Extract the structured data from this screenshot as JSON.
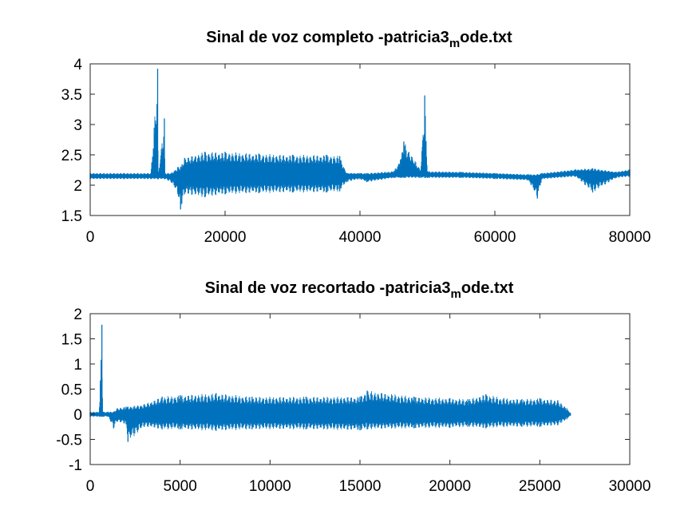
{
  "chart_data": [
    {
      "type": "line",
      "title": "Sinal de voz completo -patricia3",
      "title_subscript": "m",
      "title_suffix": "ode.txt",
      "xlabel": "",
      "ylabel": "",
      "xlim": [
        0,
        80000
      ],
      "ylim": [
        1.5,
        4
      ],
      "xticks": [
        "0",
        "20000",
        "40000",
        "60000",
        "80000"
      ],
      "yticks": [
        "1.5",
        "2",
        "2.5",
        "3",
        "3.5",
        "4"
      ],
      "grid": false,
      "color": "#0072BD",
      "series": [
        {
          "x": [
            0,
            5000,
            9000,
            10000,
            10100,
            11000,
            11100,
            12000,
            13000,
            13400,
            14000,
            17000,
            20000,
            25000,
            30000,
            35000,
            37000,
            38000,
            40000,
            41000,
            45000,
            46000,
            46500,
            49000,
            49600,
            50000,
            55000,
            60000,
            65000,
            66300,
            67000,
            72000,
            74500,
            78000,
            80000
          ],
          "center": [
            2.15,
            2.15,
            2.15,
            2.15,
            2.15,
            2.15,
            2.15,
            2.15,
            2.15,
            2.15,
            2.18,
            2.18,
            2.17,
            2.17,
            2.17,
            2.17,
            2.17,
            2.17,
            2.16,
            2.14,
            2.17,
            2.17,
            2.18,
            2.18,
            2.18,
            2.17,
            2.17,
            2.16,
            2.13,
            2.13,
            2.15,
            2.2,
            2.18,
            2.18,
            2.2
          ],
          "upper": [
            2.2,
            2.2,
            2.2,
            3.92,
            2.2,
            3.1,
            2.2,
            2.2,
            2.3,
            2.3,
            2.45,
            2.55,
            2.55,
            2.52,
            2.5,
            2.5,
            2.48,
            2.2,
            2.2,
            2.2,
            2.23,
            2.42,
            2.72,
            2.25,
            3.48,
            2.23,
            2.22,
            2.2,
            2.18,
            2.18,
            2.2,
            2.26,
            2.28,
            2.22,
            2.26
          ],
          "lower": [
            2.1,
            2.1,
            2.1,
            2.1,
            2.1,
            2.1,
            2.1,
            2.05,
            1.85,
            1.6,
            1.85,
            1.8,
            1.85,
            1.87,
            1.88,
            1.88,
            1.9,
            2.05,
            2.1,
            2.05,
            2.12,
            2.12,
            2.12,
            2.12,
            2.12,
            2.12,
            2.12,
            2.1,
            2.08,
            1.78,
            2.1,
            2.14,
            1.88,
            2.12,
            2.14
          ]
        }
      ]
    },
    {
      "type": "line",
      "title": "Sinal de voz recortado -patricia3",
      "title_subscript": "m",
      "title_suffix": "ode.txt",
      "xlabel": "",
      "ylabel": "",
      "xlim": [
        0,
        30000
      ],
      "ylim": [
        -1,
        2
      ],
      "xticks": [
        "0",
        "5000",
        "10000",
        "15000",
        "20000",
        "25000",
        "30000"
      ],
      "yticks": [
        "-1",
        "-0.5",
        "0",
        "0.5",
        "1",
        "1.5",
        "2"
      ],
      "grid": false,
      "color": "#0072BD",
      "series": [
        {
          "x": [
            0,
            500,
            650,
            700,
            1000,
            1300,
            1500,
            2000,
            2100,
            3000,
            4000,
            5000,
            7000,
            9000,
            12000,
            15000,
            15400,
            18000,
            20000,
            21000,
            22000,
            23000,
            24000,
            25000,
            26000,
            26500,
            26700
          ],
          "center": [
            0.0,
            0.0,
            0.0,
            0.0,
            0.0,
            0.0,
            0.0,
            0.0,
            0.0,
            0.0,
            0.0,
            0.0,
            0.0,
            0.0,
            0.0,
            0.0,
            0.0,
            0.0,
            0.0,
            0.0,
            0.0,
            0.0,
            0.0,
            0.0,
            0.0,
            0.0,
            0.0
          ],
          "upper": [
            0.05,
            0.05,
            1.78,
            0.05,
            0.05,
            0.05,
            0.12,
            0.15,
            0.15,
            0.2,
            0.35,
            0.38,
            0.42,
            0.35,
            0.35,
            0.35,
            0.47,
            0.35,
            0.32,
            0.3,
            0.4,
            0.32,
            0.3,
            0.32,
            0.28,
            0.12,
            0.03
          ],
          "lower": [
            -0.05,
            -0.05,
            -0.05,
            -0.05,
            -0.05,
            -0.28,
            -0.15,
            -0.2,
            -0.55,
            -0.25,
            -0.3,
            -0.3,
            -0.33,
            -0.3,
            -0.3,
            -0.32,
            -0.3,
            -0.28,
            -0.27,
            -0.25,
            -0.28,
            -0.25,
            -0.25,
            -0.25,
            -0.22,
            -0.1,
            -0.03
          ]
        }
      ]
    }
  ]
}
